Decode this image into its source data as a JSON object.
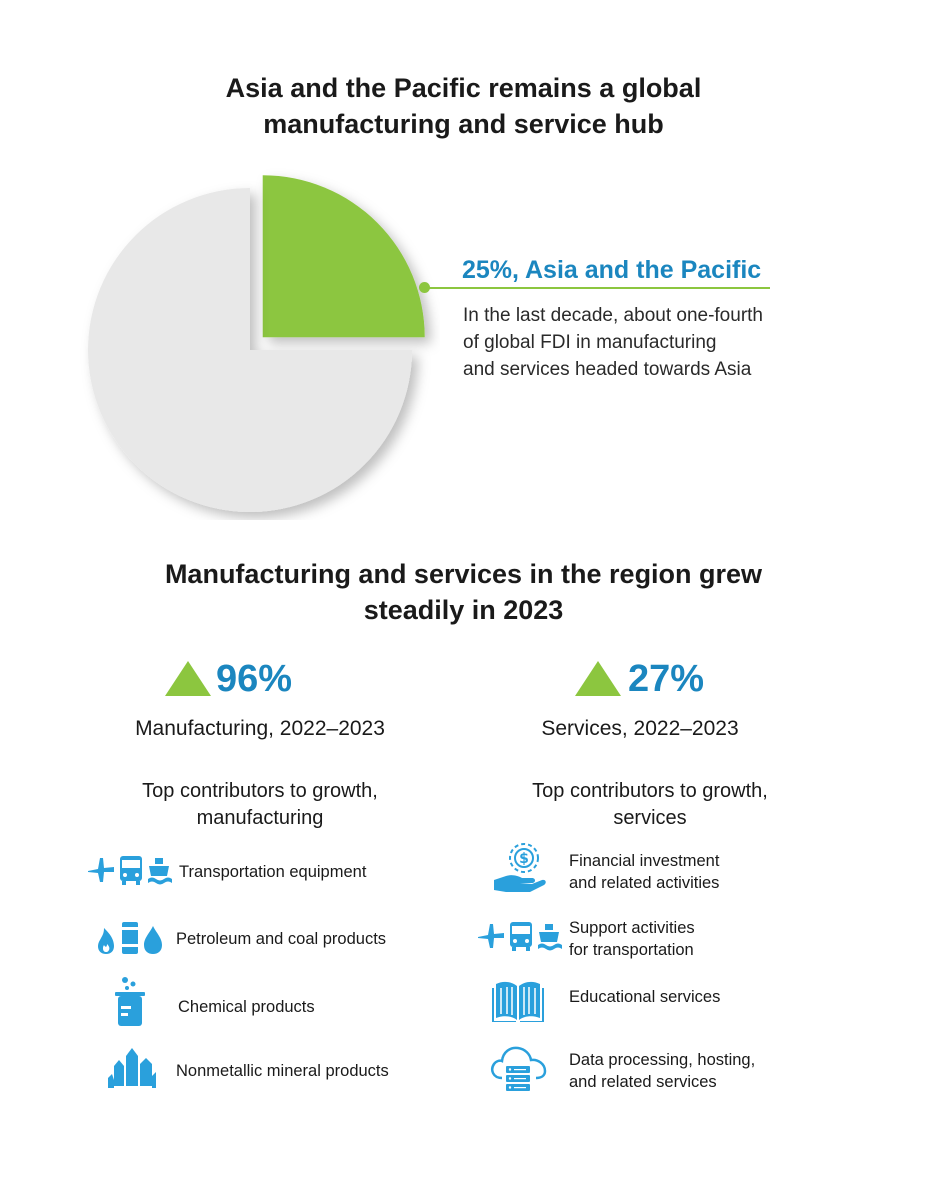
{
  "chart_data": {
    "type": "pie",
    "title": "Asia and the Pacific remains a global manufacturing and service hub",
    "slices": [
      {
        "label": "Asia and the Pacific",
        "value": 25,
        "color": "#8cc63f"
      },
      {
        "label": "",
        "value": 75,
        "color": "#e8e8e8"
      }
    ],
    "callout": {
      "label": "25%, Asia and the Pacific",
      "text_lines": [
        "In the last decade, about one-fourth",
        "of global FDI in manufacturing",
        "and services headed towards Asia"
      ]
    }
  },
  "section2": {
    "title_lines": [
      "Manufacturing and services in the region grew",
      "steadily in 2023"
    ]
  },
  "manufacturing": {
    "value": "96%",
    "label": "Manufacturing, 2022–2023",
    "contributors_title_lines": [
      "Top contributors to growth,",
      "manufacturing"
    ],
    "items": [
      {
        "icon": "transport-icon",
        "text": "Transportation equipment"
      },
      {
        "icon": "petroleum-coal-icon",
        "text": "Petroleum and coal products"
      },
      {
        "icon": "beaker-icon",
        "text": "Chemical products"
      },
      {
        "icon": "crystal-icon",
        "text": "Nonmetallic mineral products"
      }
    ]
  },
  "services": {
    "value": "27%",
    "label": "Services, 2022–2023",
    "contributors_title_lines": [
      "Top contributors to growth,",
      "services"
    ],
    "items": [
      {
        "icon": "dollar-hand-icon",
        "text_lines": [
          "Financial investment",
          "and related activities"
        ]
      },
      {
        "icon": "transport-icon",
        "text_lines": [
          "Support activities",
          "for transportation"
        ]
      },
      {
        "icon": "book-icon",
        "text_lines": [
          "Educational services"
        ]
      },
      {
        "icon": "cloud-server-icon",
        "text_lines": [
          "Data processing, hosting,",
          "and related services"
        ]
      }
    ]
  },
  "colors": {
    "accent_blue": "#1b86bf",
    "accent_green": "#8cc63f",
    "pie_grey": "#e8e8e8",
    "icon_blue": "#2aa0dc"
  }
}
